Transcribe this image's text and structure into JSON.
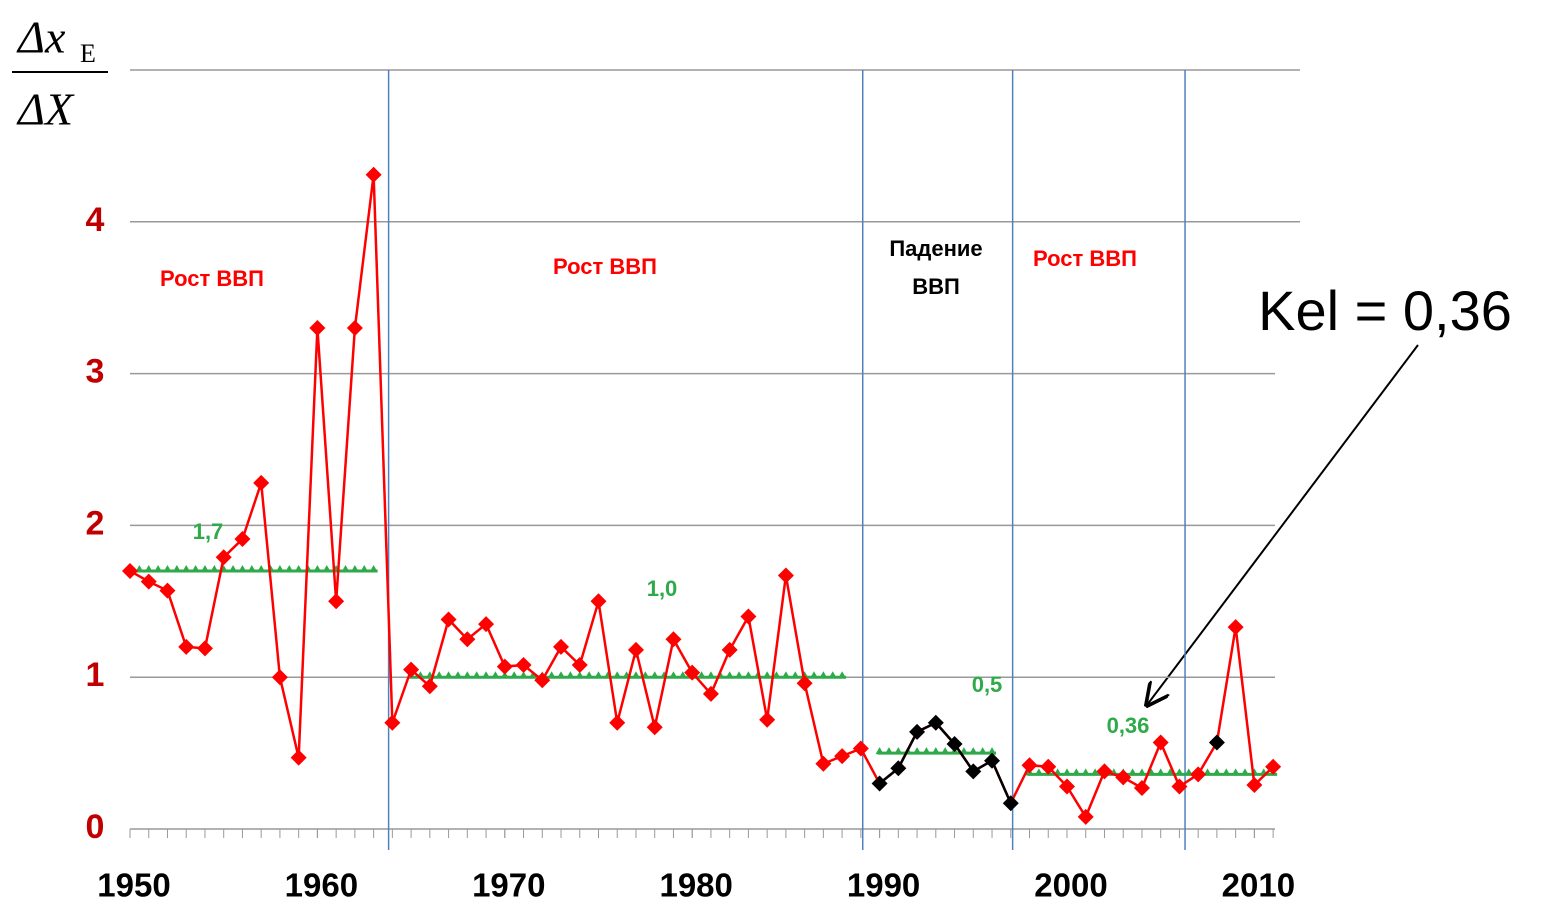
{
  "chart_data": {
    "type": "line",
    "y_label": {
      "numerator": "Δx",
      "numerator_sub": "E",
      "denominator": "ΔX"
    },
    "x": [
      1950,
      1951,
      1952,
      1953,
      1954,
      1955,
      1956,
      1957,
      1958,
      1959,
      1960,
      1961,
      1962,
      1963,
      1964,
      1965,
      1966,
      1967,
      1968,
      1969,
      1970,
      1971,
      1972,
      1973,
      1974,
      1975,
      1976,
      1977,
      1978,
      1979,
      1980,
      1981,
      1982,
      1983,
      1984,
      1985,
      1986,
      1987,
      1988,
      1989,
      1990,
      1991,
      1992,
      1993,
      1994,
      1995,
      1996,
      1997,
      1998,
      1999,
      2000,
      2001,
      2002,
      2003,
      2004,
      2005,
      2006,
      2007,
      2008,
      2009,
      2010,
      2011
    ],
    "series": [
      {
        "color": "#ff0000",
        "values": [
          1.7,
          1.63,
          1.57,
          1.2,
          1.19,
          1.79,
          1.91,
          2.28,
          1.0,
          0.47,
          3.3,
          1.5,
          3.3,
          4.31,
          0.7,
          1.05,
          0.94,
          1.38,
          1.25,
          1.35,
          1.07,
          1.08,
          0.98,
          1.2,
          1.08,
          1.5,
          0.7,
          1.18,
          0.67,
          1.25,
          1.03,
          0.89,
          1.18,
          1.4,
          0.72,
          1.67,
          0.96,
          0.43,
          0.48,
          0.53,
          0.3,
          0.4,
          0.64,
          0.7,
          0.56,
          0.38,
          0.45,
          0.17,
          0.42,
          0.41,
          0.28,
          0.08,
          0.38,
          0.34,
          0.27,
          0.57,
          0.28,
          0.36,
          0.57,
          1.33,
          0.29,
          0.41
        ],
        "marker_colors": [
          "#ff0000",
          "#ff0000",
          "#ff0000",
          "#ff0000",
          "#ff0000",
          "#ff0000",
          "#ff0000",
          "#ff0000",
          "#ff0000",
          "#ff0000",
          "#ff0000",
          "#ff0000",
          "#ff0000",
          "#ff0000",
          "#ff0000",
          "#ff0000",
          "#ff0000",
          "#ff0000",
          "#ff0000",
          "#ff0000",
          "#ff0000",
          "#ff0000",
          "#ff0000",
          "#ff0000",
          "#ff0000",
          "#ff0000",
          "#ff0000",
          "#ff0000",
          "#ff0000",
          "#ff0000",
          "#ff0000",
          "#ff0000",
          "#ff0000",
          "#ff0000",
          "#ff0000",
          "#ff0000",
          "#ff0000",
          "#ff0000",
          "#ff0000",
          "#ff0000",
          "#000000",
          "#000000",
          "#000000",
          "#000000",
          "#000000",
          "#000000",
          "#000000",
          "#000000",
          "#ff0000",
          "#ff0000",
          "#ff0000",
          "#ff0000",
          "#ff0000",
          "#ff0000",
          "#ff0000",
          "#ff0000",
          "#ff0000",
          "#ff0000",
          "#000000",
          "#ff0000",
          "#ff0000",
          "#ff0000"
        ]
      }
    ],
    "averages": [
      {
        "start": 1950,
        "end": 1963,
        "value": 1.7,
        "label": "1,7",
        "color": "#2eaa4a"
      },
      {
        "start": 1965,
        "end": 1988,
        "value": 1.0,
        "label": "1,0",
        "color": "#2eaa4a"
      },
      {
        "start": 1990,
        "end": 1996,
        "value": 0.5,
        "label": "0,5",
        "color": "#2eaa4a"
      },
      {
        "start": 1998,
        "end": 2011,
        "value": 0.36,
        "label": "0,36",
        "color": "#2eaa4a"
      }
    ],
    "period_lines": [
      1963.8,
      1989.1,
      1997.1,
      2006.3
    ],
    "annotations": [
      {
        "text": "Рост ВВП",
        "color": "#ff0000"
      },
      {
        "text": "Рост ВВП",
        "color": "#ff0000"
      },
      {
        "text": "Падение",
        "color": "#000000"
      },
      {
        "text": "ВВП",
        "color": "#000000"
      },
      {
        "text": "Рост ВВП",
        "color": "#ff0000"
      }
    ],
    "callout": "Kel = 0,36",
    "xlim": [
      1950,
      2011.1
    ],
    "xticks": [
      1950,
      1960,
      1970,
      1980,
      1990,
      2000,
      2010
    ],
    "ylim": [
      0,
      5
    ],
    "yticks": [
      0,
      1,
      2,
      3,
      4
    ],
    "grid": true
  }
}
